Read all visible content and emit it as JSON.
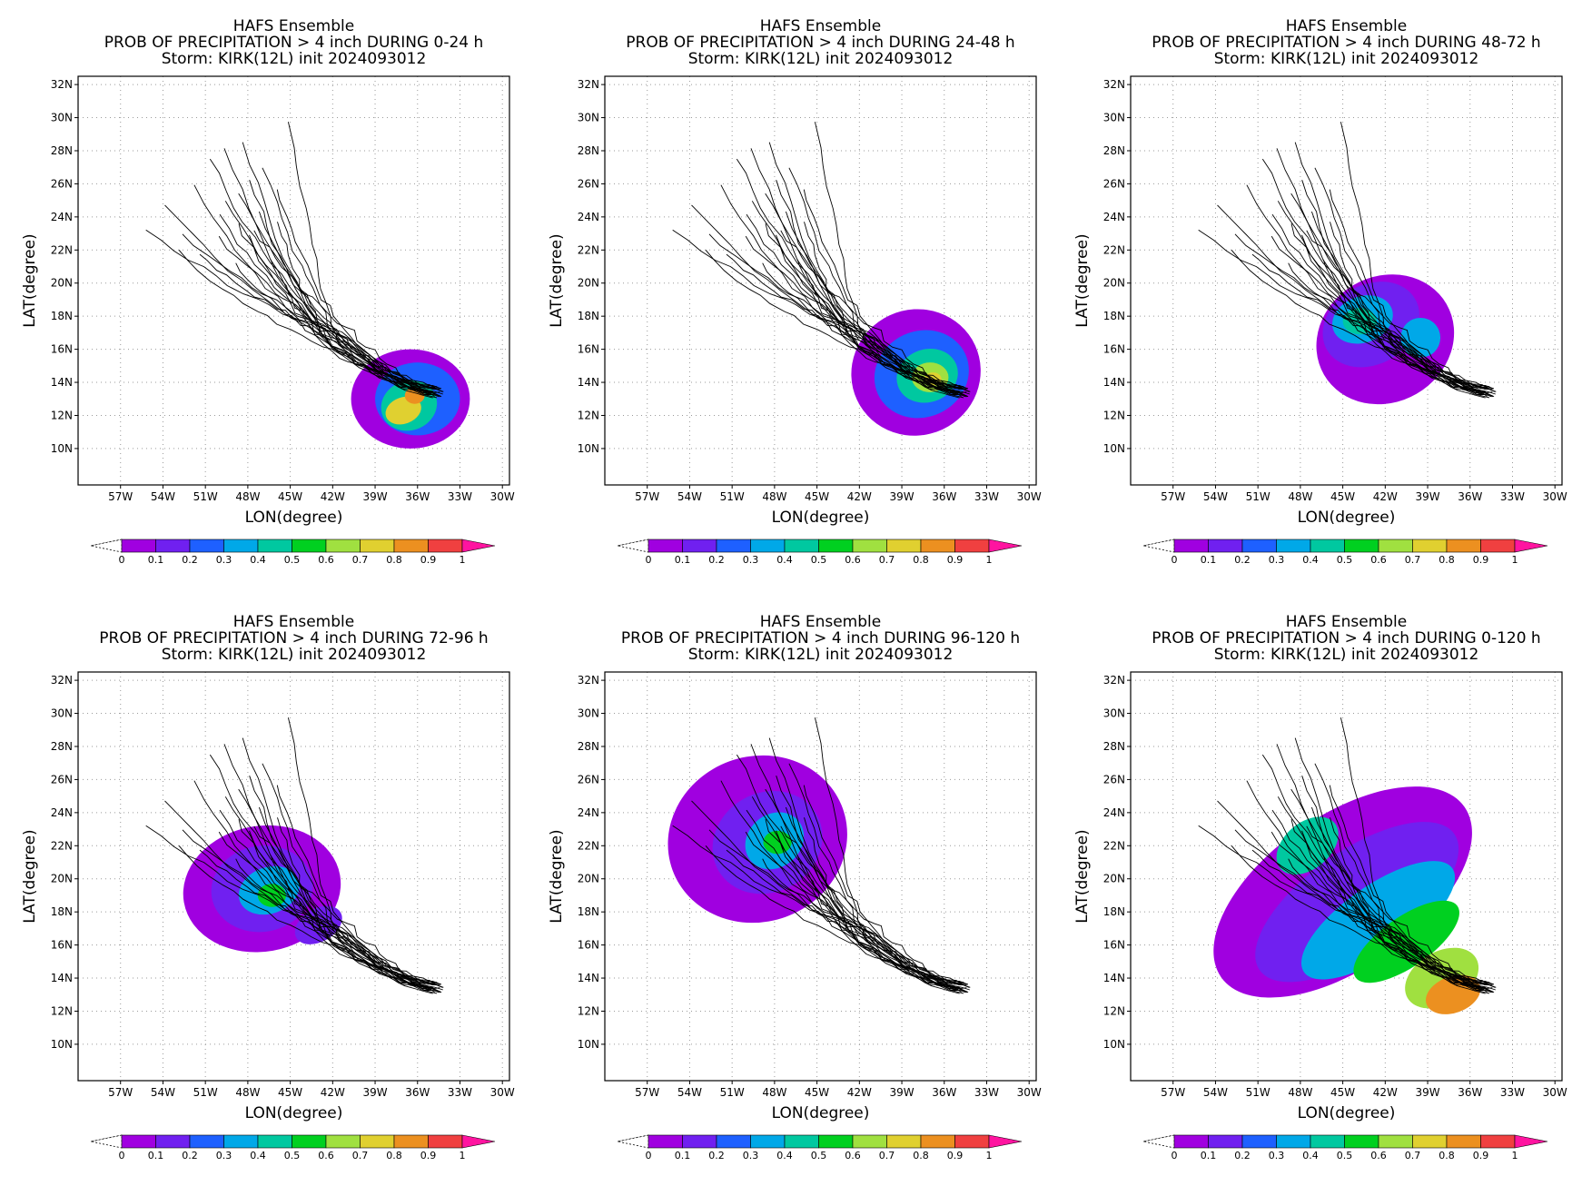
{
  "common": {
    "model": "HAFS Ensemble",
    "storm_line": "Storm: KIRK(12L) init 2024093012",
    "title_prefix": "PROB OF PRECIPITATION > 4 inch DURING",
    "xlabel": "LON(degree)",
    "ylabel": "LAT(degree)"
  },
  "panels": [
    {
      "period": "0-24 h",
      "title_line2": "PROB OF PRECIPITATION > 4 inch DURING  0-24 h"
    },
    {
      "period": "24-48 h",
      "title_line2": "PROB OF PRECIPITATION > 4 inch DURING 24-48 h"
    },
    {
      "period": "48-72 h",
      "title_line2": "PROB OF PRECIPITATION > 4 inch DURING 48-72 h"
    },
    {
      "period": "72-96 h",
      "title_line2": "PROB OF PRECIPITATION > 4 inch DURING 72-96 h"
    },
    {
      "period": "96-120 h",
      "title_line2": "PROB OF PRECIPITATION > 4 inch DURING 96-120 h"
    },
    {
      "period": "0-120 h",
      "title_line2": "PROB OF PRECIPITATION > 4 inch DURING 0-120 h"
    }
  ],
  "map": {
    "lon_ticks": [
      "57W",
      "54W",
      "51W",
      "48W",
      "45W",
      "42W",
      "39W",
      "36W",
      "33W",
      "30W"
    ],
    "lat_ticks": [
      "32N",
      "30N",
      "28N",
      "26N",
      "24N",
      "22N",
      "20N",
      "18N",
      "16N",
      "14N",
      "12N",
      "10N"
    ],
    "lon_range": [
      -60,
      -29.5
    ],
    "lat_range": [
      7.8,
      32.5
    ],
    "grid": "dotted"
  },
  "colorbar": {
    "labels": [
      "0",
      "0.1",
      "0.2",
      "0.3",
      "0.4",
      "0.5",
      "0.6",
      "0.7",
      "0.8",
      "0.9",
      "1"
    ],
    "colors": [
      "#a000e0",
      "#7020f0",
      "#1e60ff",
      "#00a8e8",
      "#00c8a0",
      "#00d020",
      "#a0e040",
      "#e0d030",
      "#ec9020",
      "#f04040",
      "#ff14a0"
    ]
  }
}
